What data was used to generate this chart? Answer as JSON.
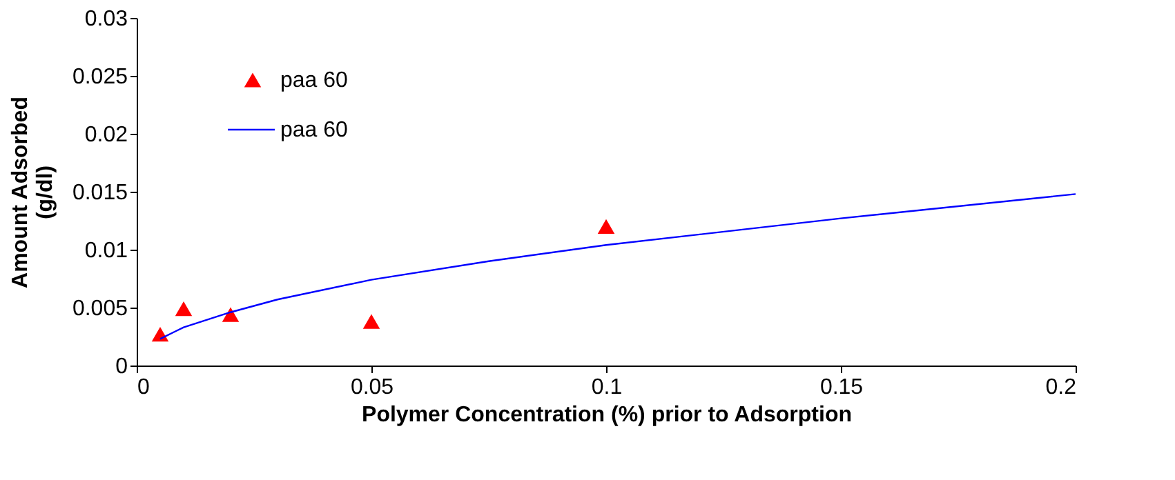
{
  "chart_data": {
    "type": "scatter",
    "xlabel": "Polymer Concentration (%) prior to Adsorption",
    "ylabel": "Amount Adsorbed\n(g/dl)",
    "xlim": [
      0,
      0.2
    ],
    "xticks": [
      0,
      0.05,
      0.1,
      0.15,
      0.2
    ],
    "ylim": [
      0,
      0.03
    ],
    "yticks": [
      0,
      0.005,
      0.01,
      0.015,
      0.02,
      0.025,
      0.03
    ],
    "grid": false,
    "legend": "top left",
    "series": [
      {
        "name": "paa 60",
        "marker": "triangle",
        "color": "#ff0000",
        "x": [
          0.005,
          0.01,
          0.02,
          0.05,
          0.1
        ],
        "values": [
          0.0027,
          0.0049,
          0.0044,
          0.0038,
          0.012
        ]
      },
      {
        "name": "paa 60",
        "type": "line",
        "marker": "none",
        "line_style": "solid",
        "color": "#0000ff",
        "x": [
          0.005,
          0.01,
          0.02,
          0.03,
          0.05,
          0.075,
          0.1,
          0.15,
          0.2
        ],
        "values": [
          0.0023,
          0.0033,
          0.0046,
          0.0057,
          0.0074,
          0.009,
          0.0104,
          0.0127,
          0.0148
        ]
      }
    ]
  }
}
